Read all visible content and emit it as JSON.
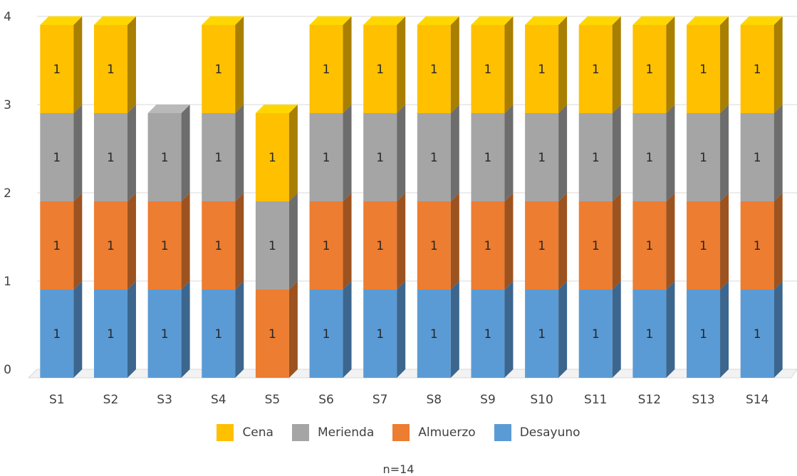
{
  "chart_data": {
    "type": "bar",
    "stacked": true,
    "three_d": true,
    "categories": [
      "S1",
      "S2",
      "S3",
      "S4",
      "S5",
      "S6",
      "S7",
      "S8",
      "S9",
      "S10",
      "S11",
      "S12",
      "S13",
      "S14"
    ],
    "series": [
      {
        "name": "Desayuno",
        "color": "#5b9bd5",
        "values": [
          1,
          1,
          1,
          1,
          0,
          1,
          1,
          1,
          1,
          1,
          1,
          1,
          1,
          1
        ]
      },
      {
        "name": "Almuerzo",
        "color": "#ed7d31",
        "values": [
          1,
          1,
          1,
          1,
          1,
          1,
          1,
          1,
          1,
          1,
          1,
          1,
          1,
          1
        ]
      },
      {
        "name": "Merienda",
        "color": "#a5a5a5",
        "values": [
          1,
          1,
          1,
          1,
          1,
          1,
          1,
          1,
          1,
          1,
          1,
          1,
          1,
          1
        ]
      },
      {
        "name": "Cena",
        "color": "#ffc000",
        "values": [
          1,
          1,
          0,
          1,
          1,
          1,
          1,
          1,
          1,
          1,
          1,
          1,
          1,
          1
        ]
      }
    ],
    "legend_order": [
      "Cena",
      "Merienda",
      "Almuerzo",
      "Desayuno"
    ],
    "legend_position": "bottom",
    "yticks": [
      "0",
      "1",
      "2",
      "3",
      "4"
    ],
    "ylim": [
      0,
      4
    ],
    "grid": true,
    "note": "n=14"
  }
}
